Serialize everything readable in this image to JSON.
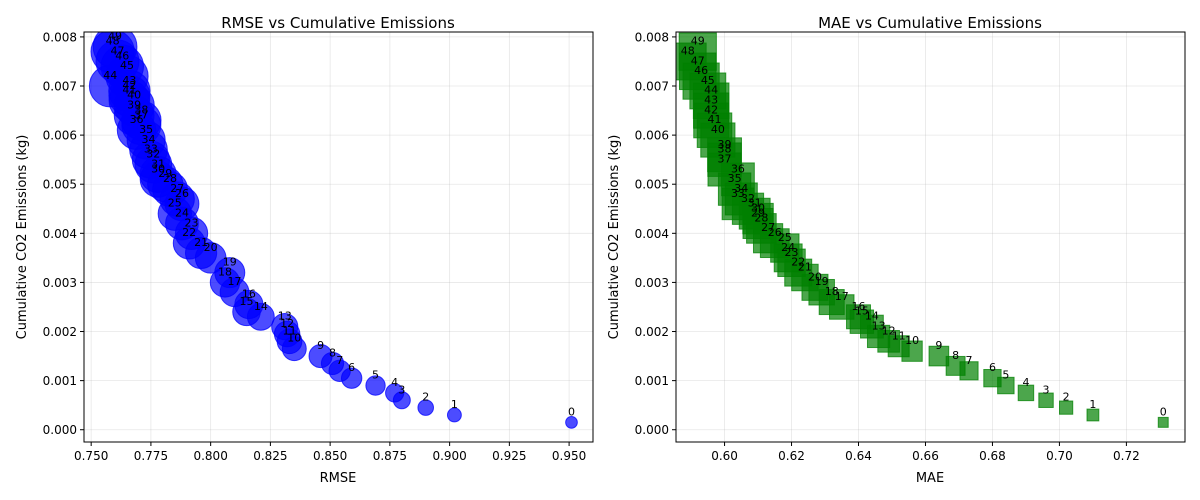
{
  "chart_data": [
    {
      "type": "scatter",
      "title": "RMSE vs Cumulative Emissions",
      "xlabel": "RMSE",
      "ylabel": "Cumulative CO2 Emissions (kg)",
      "xlim": [
        0.747,
        0.96
      ],
      "ylim": [
        -0.00025,
        0.0081
      ],
      "xticks": [
        0.75,
        0.775,
        0.8,
        0.825,
        0.85,
        0.875,
        0.9,
        0.925,
        0.95
      ],
      "xtick_labels": [
        "0.750",
        "0.775",
        "0.800",
        "0.825",
        "0.850",
        "0.875",
        "0.900",
        "0.925",
        "0.950"
      ],
      "yticks": [
        0,
        0.001,
        0.002,
        0.003,
        0.004,
        0.005,
        0.006,
        0.007,
        0.008
      ],
      "ytick_labels": [
        "0.000",
        "0.001",
        "0.002",
        "0.003",
        "0.004",
        "0.005",
        "0.006",
        "0.007",
        "0.008"
      ],
      "grid": true,
      "marker": "circle",
      "color": "#0000ff",
      "point_labels": [
        "0",
        "1",
        "2",
        "3",
        "4",
        "5",
        "6",
        "7",
        "8",
        "9",
        "10",
        "11",
        "12",
        "13",
        "14",
        "15",
        "16",
        "17",
        "18",
        "19",
        "20",
        "21",
        "22",
        "23",
        "24",
        "25",
        "26",
        "27",
        "28",
        "29",
        "30",
        "31",
        "32",
        "33",
        "34",
        "35",
        "36",
        "37",
        "38",
        "39",
        "40",
        "41",
        "42",
        "43",
        "44",
        "45",
        "46",
        "47",
        "48",
        "49"
      ],
      "x": [
        0.951,
        0.902,
        0.89,
        0.88,
        0.877,
        0.869,
        0.859,
        0.854,
        0.851,
        0.846,
        0.835,
        0.833,
        0.832,
        0.831,
        0.821,
        0.815,
        0.816,
        0.81,
        0.806,
        0.808,
        0.8,
        0.796,
        0.791,
        0.792,
        0.788,
        0.785,
        0.788,
        0.786,
        0.783,
        0.781,
        0.778,
        0.778,
        0.776,
        0.775,
        0.774,
        0.773,
        0.769,
        0.771,
        0.771,
        0.768,
        0.768,
        0.766,
        0.766,
        0.766,
        0.758,
        0.765,
        0.763,
        0.761,
        0.759,
        0.76
      ],
      "y": [
        0.00015,
        0.0003,
        0.00045,
        0.0006,
        0.00075,
        0.0009,
        0.00105,
        0.0012,
        0.00135,
        0.0015,
        0.00165,
        0.0018,
        0.00195,
        0.0021,
        0.0023,
        0.0024,
        0.00255,
        0.0028,
        0.003,
        0.0032,
        0.0035,
        0.0036,
        0.0038,
        0.004,
        0.0042,
        0.0044,
        0.0046,
        0.0047,
        0.0049,
        0.005,
        0.0051,
        0.0052,
        0.0054,
        0.0055,
        0.0057,
        0.0059,
        0.0061,
        0.0062,
        0.0063,
        0.0064,
        0.0066,
        0.0067,
        0.0068,
        0.0069,
        0.007,
        0.0072,
        0.0074,
        0.0075,
        0.0077,
        0.0078
      ]
    },
    {
      "type": "scatter",
      "title": "MAE vs Cumulative Emissions",
      "xlabel": "MAE",
      "ylabel": "Cumulative CO2 Emissions (kg)",
      "xlim": [
        0.5855,
        0.7375
      ],
      "ylim": [
        -0.00025,
        0.0081
      ],
      "xticks": [
        0.6,
        0.62,
        0.64,
        0.66,
        0.68,
        0.7,
        0.72
      ],
      "xtick_labels": [
        "0.60",
        "0.62",
        "0.64",
        "0.66",
        "0.68",
        "0.70",
        "0.72"
      ],
      "yticks": [
        0,
        0.001,
        0.002,
        0.003,
        0.004,
        0.005,
        0.006,
        0.007,
        0.008
      ],
      "ytick_labels": [
        "0.000",
        "0.001",
        "0.002",
        "0.003",
        "0.004",
        "0.005",
        "0.006",
        "0.007",
        "0.008"
      ],
      "grid": true,
      "marker": "square",
      "color": "#008000",
      "point_labels": [
        "0",
        "1",
        "2",
        "3",
        "4",
        "5",
        "6",
        "7",
        "8",
        "9",
        "10",
        "11",
        "12",
        "13",
        "14",
        "15",
        "16",
        "17",
        "18",
        "19",
        "20",
        "21",
        "22",
        "23",
        "24",
        "25",
        "26",
        "27",
        "28",
        "29",
        "30",
        "31",
        "32",
        "33",
        "34",
        "35",
        "36",
        "37",
        "38",
        "39",
        "40",
        "41",
        "42",
        "43",
        "44",
        "45",
        "46",
        "47",
        "48",
        "49"
      ],
      "x": [
        0.731,
        0.71,
        0.702,
        0.696,
        0.69,
        0.684,
        0.68,
        0.673,
        0.669,
        0.664,
        0.656,
        0.652,
        0.649,
        0.646,
        0.644,
        0.641,
        0.64,
        0.635,
        0.632,
        0.629,
        0.627,
        0.624,
        0.622,
        0.62,
        0.619,
        0.618,
        0.615,
        0.613,
        0.611,
        0.61,
        0.61,
        0.609,
        0.607,
        0.604,
        0.605,
        0.603,
        0.604,
        0.6,
        0.6,
        0.6,
        0.598,
        0.597,
        0.596,
        0.596,
        0.596,
        0.595,
        0.593,
        0.592,
        0.589,
        0.592
      ],
      "y": [
        0.00015,
        0.0003,
        0.00045,
        0.0006,
        0.00075,
        0.0009,
        0.00105,
        0.0012,
        0.0013,
        0.0015,
        0.0016,
        0.0017,
        0.0018,
        0.0019,
        0.0021,
        0.0022,
        0.0023,
        0.0025,
        0.0026,
        0.0028,
        0.0029,
        0.0031,
        0.0032,
        0.0034,
        0.0035,
        0.0037,
        0.0038,
        0.0039,
        0.0041,
        0.0042,
        0.0043,
        0.0044,
        0.0045,
        0.0046,
        0.0047,
        0.0049,
        0.0051,
        0.0053,
        0.0055,
        0.0056,
        0.0059,
        0.0061,
        0.0063,
        0.0065,
        0.0067,
        0.0069,
        0.0071,
        0.0073,
        0.0075,
        0.0077
      ]
    }
  ]
}
